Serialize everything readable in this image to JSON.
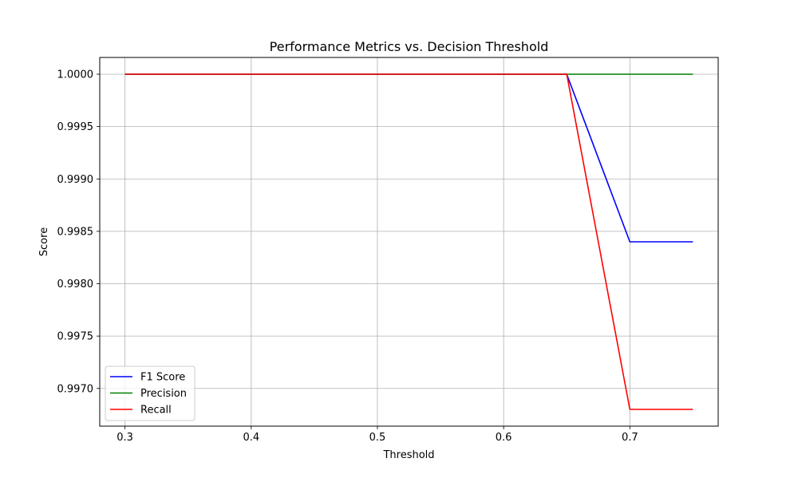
{
  "chart_data": {
    "type": "line",
    "title": "Performance Metrics vs. Decision Threshold",
    "xlabel": "Threshold",
    "ylabel": "Score",
    "xlim": [
      0.28,
      0.77
    ],
    "ylim": [
      0.99664,
      1.00016
    ],
    "xticks": [
      0.3,
      0.4,
      0.5,
      0.6,
      0.7
    ],
    "xtick_labels": [
      "0.3",
      "0.4",
      "0.5",
      "0.6",
      "0.7"
    ],
    "yticks": [
      0.997,
      0.9975,
      0.998,
      0.9985,
      0.999,
      0.9995,
      1.0
    ],
    "ytick_labels": [
      "0.9970",
      "0.9975",
      "0.9980",
      "0.9985",
      "0.9990",
      "0.9995",
      "1.0000"
    ],
    "grid": true,
    "legend_position": "bottom-left",
    "x": [
      0.3,
      0.35,
      0.4,
      0.45,
      0.5,
      0.55,
      0.6,
      0.65,
      0.7,
      0.75
    ],
    "series": [
      {
        "name": "F1 Score",
        "color": "#0000ff",
        "values": [
          1.0,
          1.0,
          1.0,
          1.0,
          1.0,
          1.0,
          1.0,
          1.0,
          0.9984,
          0.9984
        ]
      },
      {
        "name": "Precision",
        "color": "#008000",
        "values": [
          1.0,
          1.0,
          1.0,
          1.0,
          1.0,
          1.0,
          1.0,
          1.0,
          1.0,
          1.0
        ]
      },
      {
        "name": "Recall",
        "color": "#ff0000",
        "values": [
          1.0,
          1.0,
          1.0,
          1.0,
          1.0,
          1.0,
          1.0,
          1.0,
          0.9968,
          0.9968
        ]
      }
    ]
  }
}
